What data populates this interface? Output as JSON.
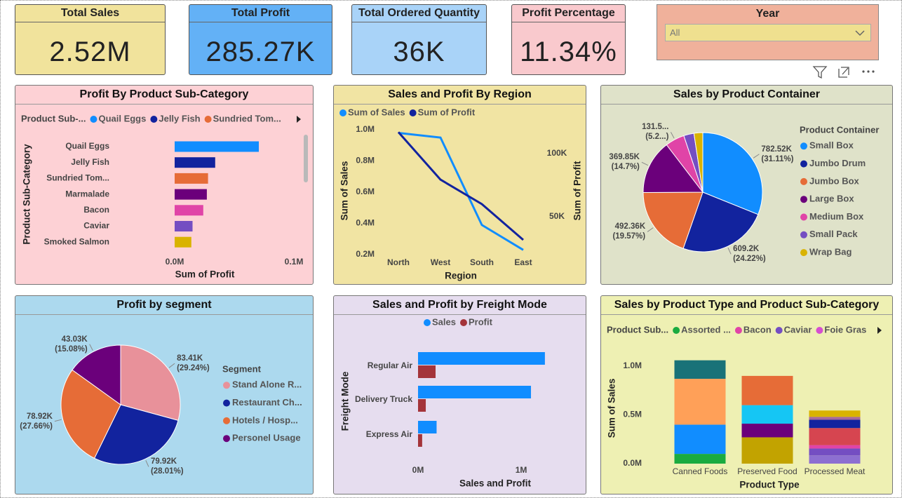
{
  "cards": [
    {
      "title": "Total Sales",
      "value": "2.52M"
    },
    {
      "title": "Total Profit",
      "value": "285.27K"
    },
    {
      "title": "Total Ordered Quantity",
      "value": "36K"
    },
    {
      "title": "Profit Percentage",
      "value": "11.34%"
    }
  ],
  "slicer": {
    "title": "Year",
    "value": "All"
  },
  "chart_data": [
    {
      "type": "bar",
      "orientation": "horizontal",
      "title": "Profit By Product Sub-Category",
      "legend": {
        "title": "Product Sub-...",
        "entries": [
          "Quail Eggs",
          "Jelly Fish",
          "Sundried Tom..."
        ]
      },
      "categories": [
        "Quail Eggs",
        "Jelly Fish",
        "Sundried Tom...",
        "Marmalade",
        "Bacon",
        "Caviar",
        "Smoked Salmon"
      ],
      "values": [
        70600,
        34000,
        28000,
        27000,
        24000,
        15000,
        14000
      ],
      "colors": [
        "#118dff",
        "#12239e",
        "#e66c37",
        "#6b007b",
        "#e044a7",
        "#744ec2",
        "#d9b300"
      ],
      "xlim": [
        0,
        100000
      ],
      "xticks": [
        {
          "value": 0,
          "label": "0.0M"
        },
        {
          "value": 100000,
          "label": "0.1M"
        }
      ],
      "xlabel": "Sum of Profit",
      "ylabel": "Product Sub-Category"
    },
    {
      "type": "line",
      "title": "Sales and Profit By Region",
      "categories": [
        "North",
        "West",
        "South",
        "East"
      ],
      "series": [
        {
          "name": "Sum of Sales",
          "color": "#118dff",
          "values": [
            980000,
            950000,
            390000,
            230000
          ]
        },
        {
          "name": "Sum of Profit",
          "color": "#12239e",
          "axis": "y2",
          "values": [
            117000,
            79400,
            60000,
            31700
          ]
        }
      ],
      "ylim": [
        182000,
        1036000
      ],
      "yticks": [
        {
          "value": 200000,
          "label": "0.2M"
        },
        {
          "value": 400000,
          "label": "0.4M"
        },
        {
          "value": 600000,
          "label": "0.6M"
        },
        {
          "value": 800000,
          "label": "0.8M"
        },
        {
          "value": 1000000,
          "label": "1.0M"
        }
      ],
      "y2lim": [
        17800,
        123300
      ],
      "y2ticks": [
        {
          "value": 50000,
          "label": "50K"
        },
        {
          "value": 100000,
          "label": "100K"
        }
      ],
      "xlabel": "Region",
      "ylabel": "Sum of Sales",
      "y2label": "Sum of Profit"
    },
    {
      "type": "pie",
      "title": "Sales by Product Container",
      "legend_title": "Product Container",
      "categories": [
        "Small Box",
        "Jumbo Drum",
        "Jumbo Box",
        "Large Box",
        "Medium Box",
        "Small Pack",
        "Wrap Bag"
      ],
      "values": [
        782520,
        609200,
        492360,
        369850,
        131500,
        70000,
        60000
      ],
      "value_labels": [
        "782.52K (31.11%)",
        "609.2K (24.22%)",
        "492.36K (19.57%)",
        "369.85K (14.7%)",
        "131.5... (5.2...)",
        null,
        null
      ],
      "colors": [
        "#118dff",
        "#12239e",
        "#e66c37",
        "#6b007b",
        "#e044a7",
        "#744ec2",
        "#d9b300"
      ]
    },
    {
      "type": "pie",
      "title": "Profit by segment",
      "legend_title": "Segment",
      "categories": [
        "Stand Alone R...",
        "Restaurant Ch...",
        "Hotels / Hosp...",
        "Personel Usage"
      ],
      "values": [
        83410,
        79920,
        78920,
        43030
      ],
      "value_labels": [
        "83.41K (29.24%)",
        "79.92K (28.01%)",
        "78.92K (27.66%)",
        "43.03K (15.08%)"
      ],
      "colors": [
        "#e8919a",
        "#12239e",
        "#e66c37",
        "#6b007b"
      ]
    },
    {
      "type": "bar",
      "orientation": "horizontal",
      "title": "Sales and Profit by Freight Mode",
      "categories": [
        "Regular Air",
        "Delivery Truck",
        "Express Air"
      ],
      "series": [
        {
          "name": "Sales",
          "color": "#118dff",
          "values": [
            1230000,
            1095000,
            180000
          ]
        },
        {
          "name": "Profit",
          "color": "#a4343a",
          "values": [
            170000,
            75000,
            40000
          ]
        }
      ],
      "xlim": [
        0,
        1360000
      ],
      "xticks": [
        {
          "value": 0,
          "label": "0M"
        },
        {
          "value": 1000000,
          "label": "1M"
        }
      ],
      "xlabel": "Sales and Profit",
      "ylabel": "Freight Mode"
    },
    {
      "type": "stacked_bar",
      "title": "Sales by Product Type and Product Sub-Category",
      "legend": {
        "title": "Product Sub...",
        "entries": [
          {
            "name": "Assorted ...",
            "color": "#1aab40"
          },
          {
            "name": "Bacon",
            "color": "#e044a7"
          },
          {
            "name": "Caviar",
            "color": "#744ec2"
          },
          {
            "name": "Foie Gras",
            "color": "#d64fd0"
          }
        ]
      },
      "categories": [
        "Canned Foods",
        "Preserved Food",
        "Processed Meat"
      ],
      "stacks": [
        {
          "values": [
            100000,
            300000,
            470000,
            190000
          ],
          "colors": [
            "#1aab40",
            "#118dff",
            "#ffa058",
            "#197278"
          ]
        },
        {
          "values": [
            270000,
            140000,
            190000,
            300000
          ],
          "colors": [
            "#c2a300",
            "#6b007b",
            "#15c6f4",
            "#e66c37"
          ]
        },
        {
          "values": [
            85000,
            70000,
            35000,
            175000,
            85000,
            30000,
            65000
          ],
          "colors": [
            "#8d6fd1",
            "#744ec2",
            "#e044a7",
            "#d64550",
            "#12239e",
            "#a66999",
            "#d9b300"
          ]
        }
      ],
      "ylim": [
        0,
        1108000
      ],
      "yticks": [
        {
          "value": 0,
          "label": "0.0M"
        },
        {
          "value": 500000,
          "label": "0.5M"
        },
        {
          "value": 1000000,
          "label": "1.0M"
        }
      ],
      "xlabel": "Product Type",
      "ylabel": "Sum of Sales"
    }
  ]
}
